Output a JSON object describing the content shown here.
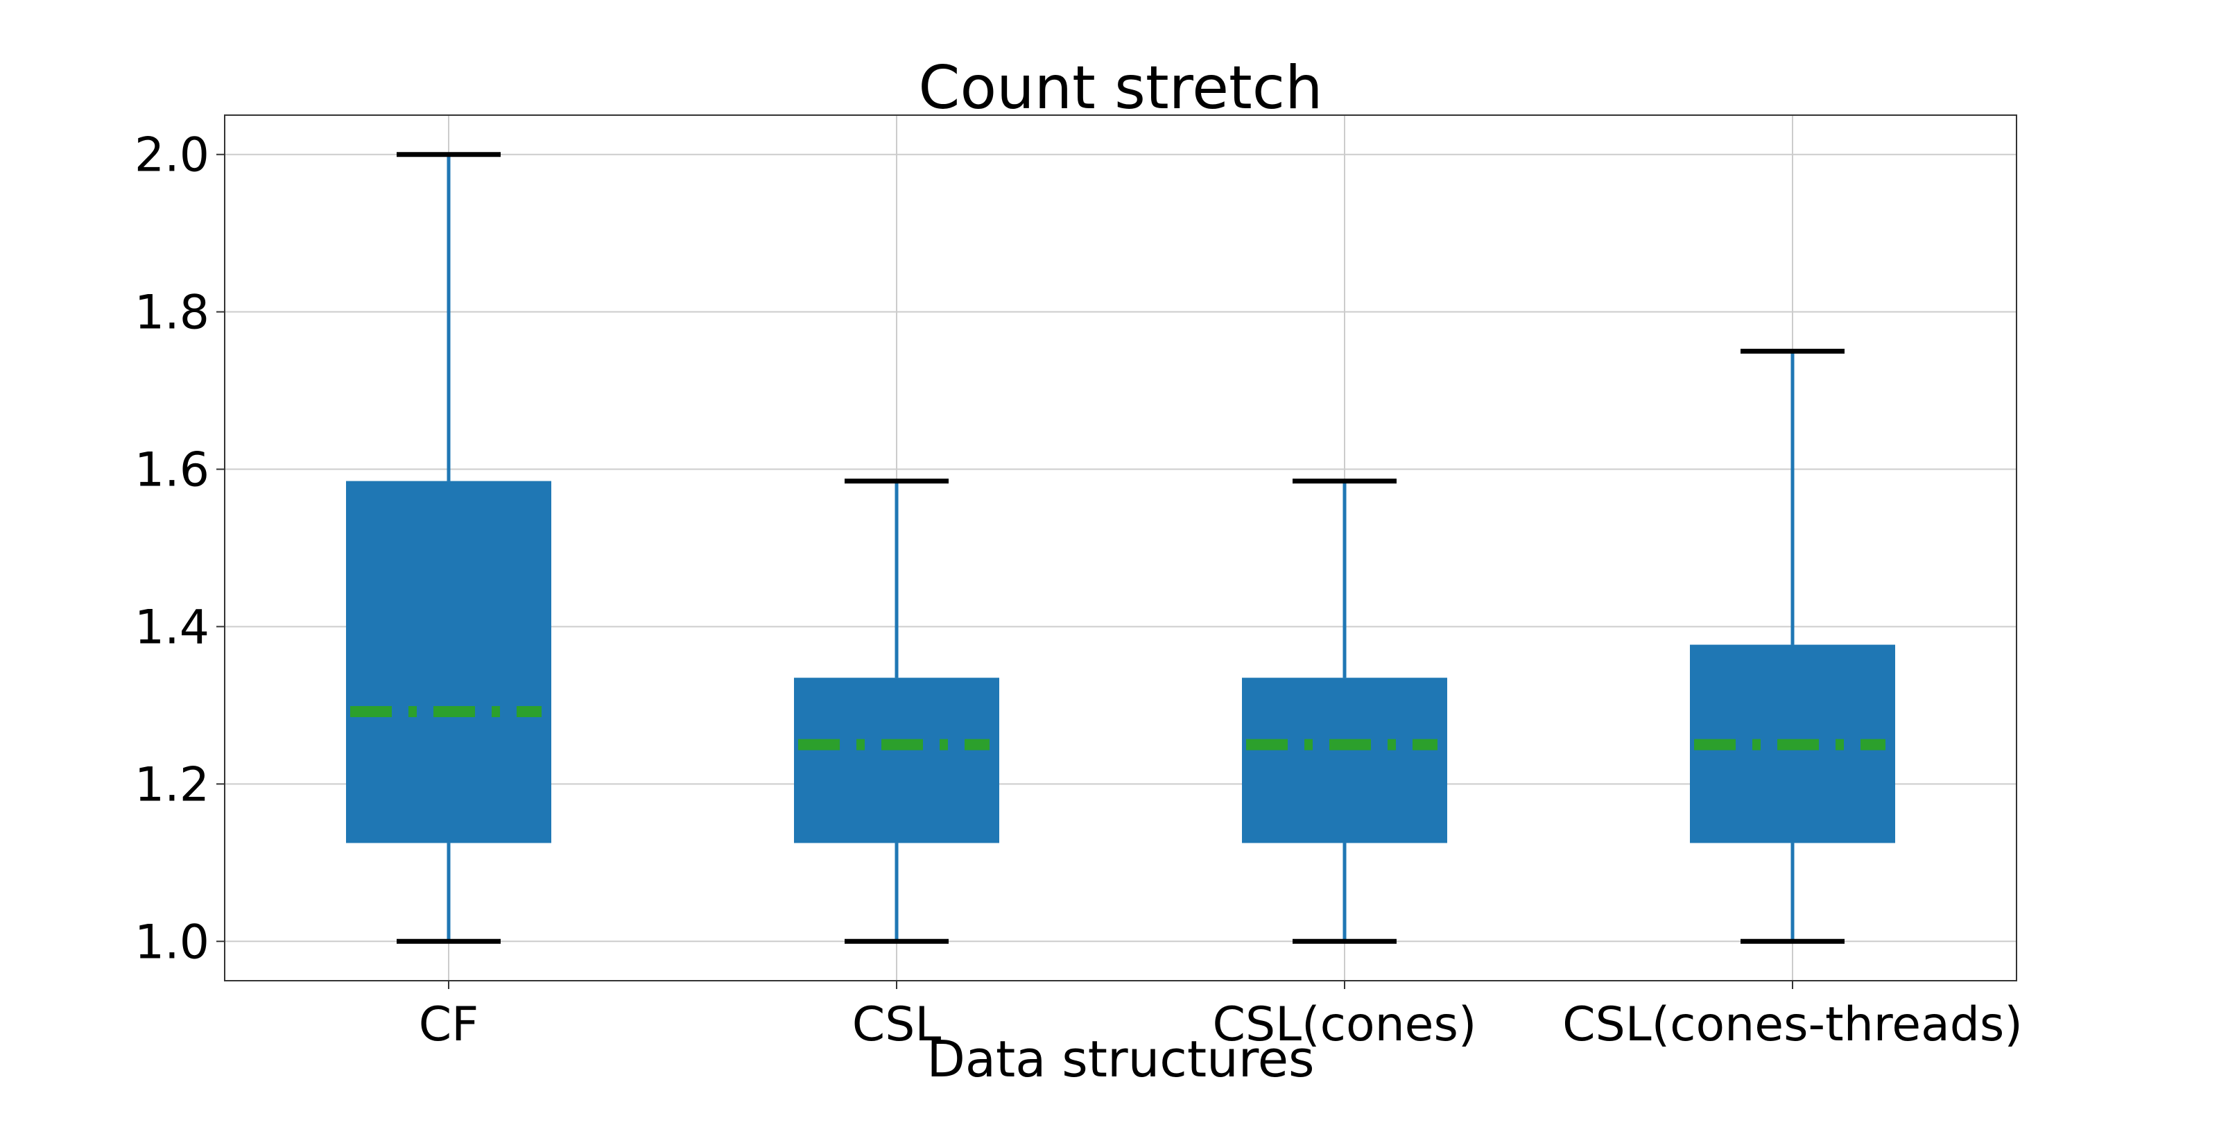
{
  "chart_data": {
    "type": "box",
    "title": "Count stretch",
    "xlabel": "Data structures",
    "ylabel": "",
    "ylim": [
      0.95,
      2.05
    ],
    "yticks": [
      1.0,
      1.2,
      1.4,
      1.6,
      1.8,
      2.0
    ],
    "grid": true,
    "categories": [
      "CF",
      "CSL",
      "CSL(cones)",
      "CSL(cones-threads)"
    ],
    "boxes": [
      {
        "whisker_low": 1.0,
        "q1": 1.125,
        "median": 1.292,
        "q3": 1.585,
        "whisker_high": 2.0
      },
      {
        "whisker_low": 1.0,
        "q1": 1.125,
        "median": 1.25,
        "q3": 1.335,
        "whisker_high": 1.585
      },
      {
        "whisker_low": 1.0,
        "q1": 1.125,
        "median": 1.25,
        "q3": 1.335,
        "whisker_high": 1.585
      },
      {
        "whisker_low": 1.0,
        "q1": 1.125,
        "median": 1.25,
        "q3": 1.377,
        "whisker_high": 1.75
      }
    ],
    "colors": {
      "box": "#1f77b4",
      "whisker": "#1f77b4",
      "cap": "#000000",
      "median": "#2ca02c",
      "grid": "#cccccc"
    }
  }
}
